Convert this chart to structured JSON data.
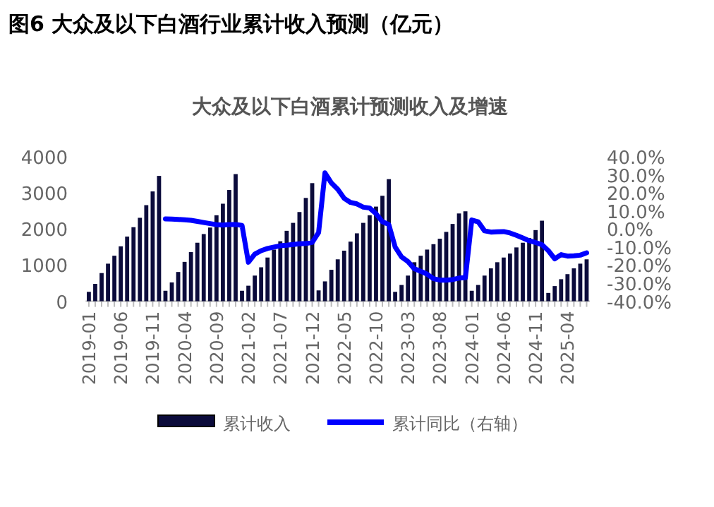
{
  "chart_data": {
    "type": "bar",
    "title": "图6  大众及以下白酒行业累计收入预测（亿元）",
    "subtitle": "大众及以下白酒累计预测收入及增速",
    "categories": [
      "2019-01",
      null,
      null,
      null,
      null,
      "2019-06",
      null,
      null,
      null,
      null,
      "2019-11",
      null,
      null,
      null,
      null,
      "2020-04",
      null,
      null,
      null,
      null,
      "2020-09",
      null,
      null,
      null,
      null,
      "2021-02",
      null,
      null,
      null,
      null,
      "2021-07",
      null,
      null,
      null,
      null,
      "2021-12",
      null,
      null,
      null,
      null,
      "2022-05",
      null,
      null,
      null,
      null,
      "2022-10",
      null,
      null,
      null,
      null,
      "2023-03",
      null,
      null,
      null,
      null,
      "2023-08",
      null,
      null,
      null,
      null,
      "2024-01",
      null,
      null,
      null,
      null,
      "2024-06",
      null,
      null,
      null,
      null,
      "2024-11",
      null,
      null,
      null,
      null,
      "2025-04",
      null,
      null,
      null
    ],
    "series": [
      {
        "name": "累计收入",
        "color": "#0b0b3b",
        "values": [
          260,
          480,
          780,
          1040,
          1260,
          1520,
          1790,
          2050,
          2310,
          2660,
          3040,
          3470,
          290,
          520,
          810,
          1090,
          1360,
          1620,
          1860,
          2040,
          2380,
          2700,
          3080,
          3520,
          290,
          430,
          710,
          940,
          1210,
          1430,
          1660,
          1950,
          2170,
          2470,
          2860,
          3270,
          300,
          550,
          870,
          1160,
          1400,
          1650,
          1880,
          2170,
          2380,
          2620,
          2920,
          3380,
          260,
          450,
          710,
          1080,
          1260,
          1430,
          1580,
          1730,
          1920,
          2140,
          2430,
          2490,
          290,
          450,
          710,
          910,
          1080,
          1210,
          1320,
          1490,
          1620,
          1750,
          1970,
          2230,
          230,
          420,
          610,
          750,
          910,
          1040,
          1160
        ]
      },
      {
        "name": "累计同比（右轴）",
        "type": "line",
        "axis": "y2",
        "color": "#0000ff",
        "values": [
          null,
          null,
          null,
          null,
          null,
          null,
          null,
          null,
          null,
          null,
          null,
          null,
          5.6,
          5.5,
          5.3,
          5.1,
          4.8,
          4.2,
          3.6,
          3.0,
          2.4,
          2.2,
          2.5,
          2.5,
          2.0,
          -18.4,
          -13.9,
          -12.0,
          -10.8,
          -10.0,
          -9.3,
          -9.0,
          -8.6,
          -8.2,
          -8.0,
          -7.4,
          -2.0,
          31.1,
          25.5,
          22.0,
          17.0,
          14.7,
          13.9,
          12.1,
          11.6,
          8.5,
          4.0,
          2.5,
          -10.0,
          -15.5,
          -18.0,
          -22.0,
          -23.4,
          -25.0,
          -27.5,
          -28.3,
          -28.3,
          -28.0,
          -27.2,
          -27.0,
          5.0,
          4.0,
          -1.0,
          -1.7,
          -1.5,
          -1.4,
          -2.2,
          -3.5,
          -5.0,
          -6.5,
          -7.5,
          -8.7,
          -12.0,
          -16.5,
          -14.2,
          -15.0,
          -14.8,
          -14.5,
          -13.2
        ]
      }
    ],
    "ylim": [
      0,
      4000
    ],
    "yticks": [
      0,
      1000,
      2000,
      3000,
      4000
    ],
    "y2lim": [
      -40,
      40
    ],
    "y2ticks": [
      {
        "value": -40,
        "label": "-40.0%"
      },
      {
        "value": -30,
        "label": "-30.0%"
      },
      {
        "value": -20,
        "label": "-20.0%"
      },
      {
        "value": -10,
        "label": "-10.0%"
      },
      {
        "value": 0,
        "label": "0.0%"
      },
      {
        "value": 10,
        "label": "10.0%"
      },
      {
        "value": 20,
        "label": "20.0%"
      },
      {
        "value": 30,
        "label": "30.0%"
      },
      {
        "value": 40,
        "label": "40.0%"
      }
    ],
    "grid": false,
    "legend": "bottom",
    "marker": "none",
    "line_style": "solid"
  }
}
